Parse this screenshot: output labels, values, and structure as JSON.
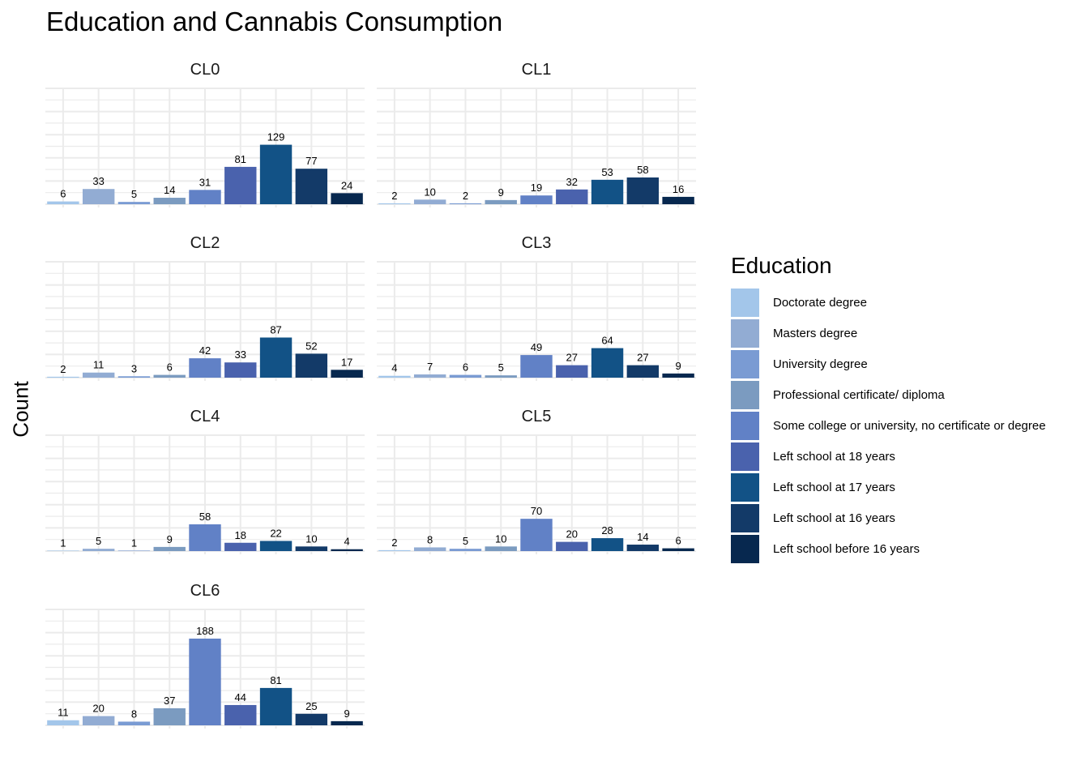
{
  "chart_data": {
    "type": "bar",
    "title": "Education and Cannabis Consumption",
    "ylabel": "Count",
    "xlabel": "",
    "legend": {
      "title": "Education",
      "placement": "right",
      "entries": [
        {
          "name": "Doctorate degree",
          "color": "#a3c6ea"
        },
        {
          "name": "Masters degree",
          "color": "#92acd3"
        },
        {
          "name": "University degree",
          "color": "#7a9bd3"
        },
        {
          "name": "Professional certificate/ diploma",
          "color": "#7b9bc0"
        },
        {
          "name": "Some college or university, no certificate or degree",
          "color": "#6181c6"
        },
        {
          "name": "Left school at 18 years",
          "color": "#4a62ad"
        },
        {
          "name": "Left school at 17 years",
          "color": "#125286"
        },
        {
          "name": "Left school at 16 years",
          "color": "#133a68"
        },
        {
          "name": "Left school before 16 years",
          "color": "#07284f"
        }
      ]
    },
    "categories": [
      "Doctorate degree",
      "Masters degree",
      "University degree",
      "Professional certificate/ diploma",
      "Some college or university, no certificate or degree",
      "Left school at 18 years",
      "Left school at 17 years",
      "Left school at 16 years",
      "Left school before 16 years"
    ],
    "ylim": [
      0,
      188
    ],
    "grid": true,
    "facets": [
      {
        "name": "CL0",
        "values": [
          6,
          33,
          5,
          14,
          31,
          81,
          129,
          77,
          24
        ]
      },
      {
        "name": "CL1",
        "values": [
          2,
          10,
          2,
          9,
          19,
          32,
          53,
          58,
          16
        ]
      },
      {
        "name": "CL2",
        "values": [
          2,
          11,
          3,
          6,
          42,
          33,
          87,
          52,
          17
        ]
      },
      {
        "name": "CL3",
        "values": [
          4,
          7,
          6,
          5,
          49,
          27,
          64,
          27,
          9
        ]
      },
      {
        "name": "CL4",
        "values": [
          1,
          5,
          1,
          9,
          58,
          18,
          22,
          10,
          4
        ]
      },
      {
        "name": "CL5",
        "values": [
          2,
          8,
          5,
          10,
          70,
          20,
          28,
          14,
          6
        ]
      },
      {
        "name": "CL6",
        "values": [
          11,
          20,
          8,
          37,
          188,
          44,
          81,
          25,
          9
        ]
      }
    ]
  }
}
